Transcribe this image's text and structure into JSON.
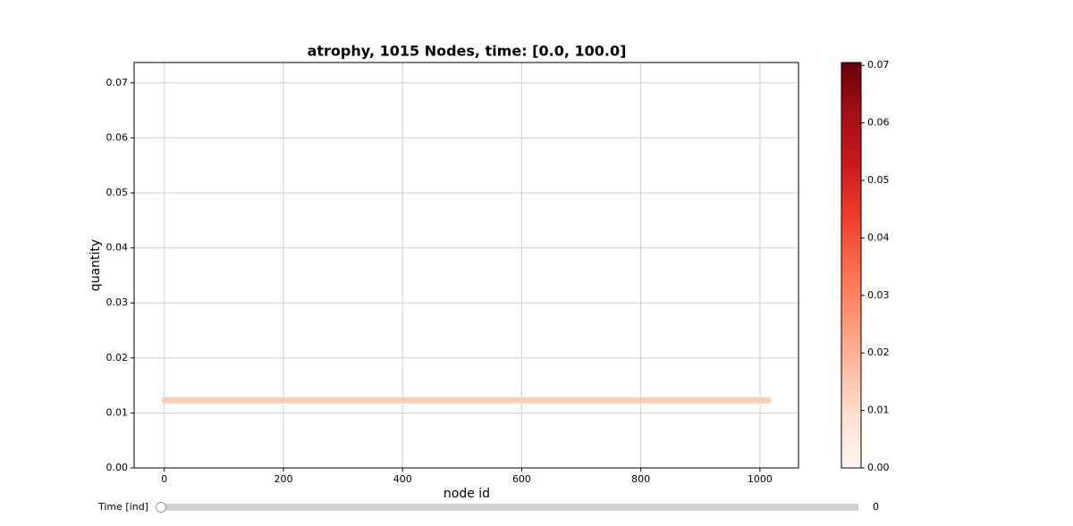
{
  "chart_data": {
    "type": "line",
    "title": "atrophy, 1015 Nodes, time: [0.0, 100.0]",
    "x_label": "node id",
    "y_label": "quantity",
    "x": [
      0,
      1014
    ],
    "values": [
      0.0123,
      0.0123
    ],
    "color": "#fbcdb8",
    "xlim": [
      -50.7,
      1064.7
    ],
    "ylim": [
      0,
      0.0737
    ],
    "xticks": [
      0,
      200,
      400,
      600,
      800,
      1000
    ],
    "yticks": [
      {
        "value": 0,
        "label": "0.00"
      },
      {
        "value": 0.01,
        "label": "0.01"
      },
      {
        "value": 0.02,
        "label": "0.02"
      },
      {
        "value": 0.03,
        "label": "0.03"
      },
      {
        "value": 0.04,
        "label": "0.04"
      },
      {
        "value": 0.05,
        "label": "0.05"
      },
      {
        "value": 0.06,
        "label": "0.06"
      },
      {
        "value": 0.07,
        "label": "0.07"
      }
    ],
    "grid": true,
    "colorbar": {
      "lim": [
        0,
        0.0705
      ],
      "ticks": [
        {
          "value": 0,
          "label": "0.00"
        },
        {
          "value": 0.01,
          "label": "0.01"
        },
        {
          "value": 0.02,
          "label": "0.02"
        },
        {
          "value": 0.03,
          "label": "0.03"
        },
        {
          "value": 0.04,
          "label": "0.04"
        },
        {
          "value": 0.05,
          "label": "0.05"
        },
        {
          "value": 0.06,
          "label": "0.06"
        },
        {
          "value": 0.07,
          "label": "0.07"
        }
      ]
    },
    "slider": {
      "label": "Time [ind]",
      "value": 0
    }
  }
}
